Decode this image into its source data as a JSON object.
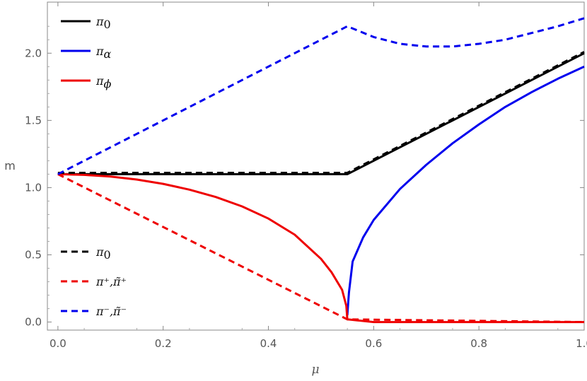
{
  "chart_data": {
    "type": "line",
    "title": "",
    "xlabel": "μ",
    "ylabel": "m",
    "xlim": [
      -0.02,
      1.0
    ],
    "ylim": [
      -0.06,
      2.38
    ],
    "grid": false,
    "xticks": [
      0.0,
      0.2,
      0.4,
      0.6,
      0.8,
      1.0
    ],
    "xtick_labels": [
      "0.0",
      "0.2",
      "0.4",
      "0.6",
      "0.8",
      "1.0"
    ],
    "yticks": [
      0.0,
      0.5,
      1.0,
      1.5,
      2.0
    ],
    "ytick_labels": [
      "0.0",
      "0.5",
      "1.0",
      "1.5",
      "2.0"
    ],
    "series": [
      {
        "name": "π0",
        "color": "#000000",
        "dash": "solid",
        "x": [
          0.0,
          0.55,
          1.0
        ],
        "y": [
          1.1,
          1.1,
          2.0
        ]
      },
      {
        "name": "πα",
        "color": "#0000ee",
        "dash": "solid",
        "x": [
          0.55,
          0.553,
          0.56,
          0.58,
          0.6,
          0.65,
          0.7,
          0.75,
          0.8,
          0.85,
          0.9,
          0.95,
          1.0
        ],
        "y": [
          0.05,
          0.22,
          0.45,
          0.63,
          0.76,
          0.99,
          1.17,
          1.33,
          1.47,
          1.6,
          1.71,
          1.81,
          1.9
        ]
      },
      {
        "name": "πϕ",
        "color": "#ee0000",
        "dash": "solid",
        "x": [
          0.0,
          0.05,
          0.1,
          0.15,
          0.2,
          0.25,
          0.3,
          0.35,
          0.4,
          0.45,
          0.5,
          0.52,
          0.54,
          0.548,
          0.55,
          0.6,
          0.7,
          0.8,
          0.9,
          1.0
        ],
        "y": [
          1.1,
          1.095,
          1.082,
          1.06,
          1.028,
          0.985,
          0.93,
          0.86,
          0.77,
          0.65,
          0.47,
          0.37,
          0.24,
          0.12,
          0.02,
          0.0,
          0.0,
          0.0,
          0.0,
          0.0
        ]
      },
      {
        "name": "π0",
        "color": "#000000",
        "dash": "dashed",
        "x": [
          0.0,
          0.55,
          1.0
        ],
        "y": [
          1.11,
          1.11,
          2.01
        ]
      },
      {
        "name": "π⁺,π̃⁺",
        "color": "#ee0000",
        "dash": "dashed",
        "x": [
          0.0,
          0.55,
          1.0
        ],
        "y": [
          1.1,
          0.02,
          0.0
        ]
      },
      {
        "name": "π⁻,π̃⁻",
        "color": "#0000ee",
        "dash": "dashed",
        "x": [
          0.0,
          0.55,
          0.6,
          0.65,
          0.7,
          0.75,
          0.8,
          0.85,
          0.9,
          0.95,
          1.0
        ],
        "y": [
          1.1,
          2.2,
          2.12,
          2.07,
          2.05,
          2.05,
          2.07,
          2.1,
          2.15,
          2.2,
          2.26
        ]
      }
    ],
    "legends": [
      {
        "placement": "top-left",
        "entries": [
          {
            "label": "π0",
            "color": "#000000",
            "dash": "solid",
            "main": "π",
            "sub": "0"
          },
          {
            "label": "πα",
            "color": "#0000ee",
            "dash": "solid",
            "main": "π",
            "sub": "α"
          },
          {
            "label": "πϕ",
            "color": "#ee0000",
            "dash": "solid",
            "main": "π",
            "sub": "ϕ"
          }
        ]
      },
      {
        "placement": "bottom-left",
        "entries": [
          {
            "label": "π0",
            "color": "#000000",
            "dash": "dashed",
            "main": "π",
            "sub": "0"
          },
          {
            "label": "π⁺,π̃⁺",
            "color": "#ee0000",
            "dash": "dashed",
            "main": "π⁺,π̃⁺",
            "sub": ""
          },
          {
            "label": "π⁻,π̃⁻",
            "color": "#0000ee",
            "dash": "dashed",
            "main": "π⁻,π̃⁻",
            "sub": ""
          }
        ]
      }
    ]
  }
}
